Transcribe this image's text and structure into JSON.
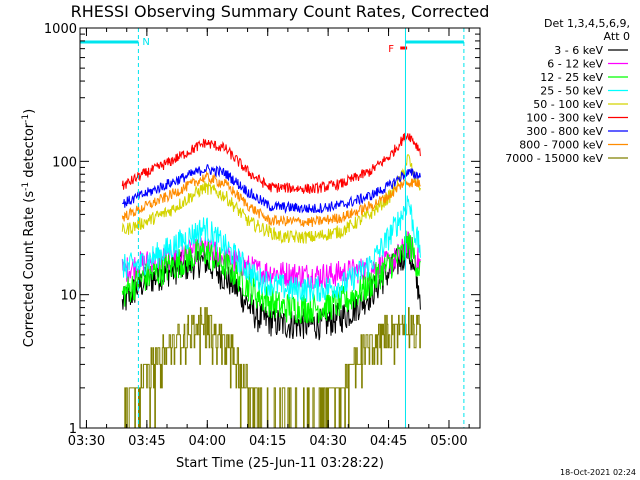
{
  "chart_data": {
    "type": "line",
    "title": "RHESSI Observing Summary Count Rates, Corrected",
    "xlabel": "Start Time (25-Jun-11 03:28:22)",
    "ylabel_main": "Corrected Count Rate (s",
    "ylabel_sup1": "-1",
    "ylabel_mid": " detector",
    "ylabel_sup2": "-1",
    "ylabel_end": ")",
    "x_unit": "minutes after 03:28:22",
    "xlim": [
      0,
      99.3
    ],
    "ylim": [
      1,
      1000
    ],
    "y_scale": "log",
    "x_ticks": [
      {
        "t": 1.6,
        "label": "03:30"
      },
      {
        "t": 16.6,
        "label": "03:45"
      },
      {
        "t": 31.6,
        "label": "04:00"
      },
      {
        "t": 46.6,
        "label": "04:15"
      },
      {
        "t": 61.6,
        "label": "04:30"
      },
      {
        "t": 76.6,
        "label": "04:45"
      },
      {
        "t": 91.6,
        "label": "05:00"
      }
    ],
    "y_ticks": [
      {
        "v": 1,
        "label": "1"
      },
      {
        "v": 10,
        "label": "10"
      },
      {
        "v": 100,
        "label": "100"
      },
      {
        "v": 1000,
        "label": "1000"
      }
    ],
    "legend": {
      "header1": "Det 1,3,4,5,6,9,",
      "header2": "Att 0",
      "placement": "right"
    },
    "flags": {
      "night_label": "N",
      "flare_label": "F",
      "night_color": "#00e5ee",
      "flare_color": "#ff0000",
      "night_bars": [
        [
          0,
          14.5
        ],
        [
          80.8,
          95.3
        ]
      ],
      "flare_bar": [
        79.5,
        81.2
      ]
    },
    "vlines_solid": [
      0,
      80.8
    ],
    "vlines_dashed": [
      14.5,
      95.3
    ],
    "data_range": [
      10.5,
      84.5
    ],
    "series": [
      {
        "name": "3 - 6 keV",
        "color": "#000000",
        "noise": 0.06,
        "points": [
          [
            10.5,
            8.5
          ],
          [
            15,
            12
          ],
          [
            22,
            15
          ],
          [
            31,
            18
          ],
          [
            38,
            12
          ],
          [
            44,
            6.8
          ],
          [
            50,
            6
          ],
          [
            60,
            6
          ],
          [
            66,
            7
          ],
          [
            72,
            10
          ],
          [
            76,
            14
          ],
          [
            80,
            19
          ],
          [
            81.5,
            22
          ],
          [
            83,
            14
          ],
          [
            84.5,
            10
          ]
        ]
      },
      {
        "name": "6 - 12 keV",
        "color": "#ff00ff",
        "noise": 0.05,
        "points": [
          [
            10.5,
            15
          ],
          [
            15,
            17
          ],
          [
            22,
            19
          ],
          [
            31,
            22
          ],
          [
            38,
            18
          ],
          [
            44,
            15
          ],
          [
            55,
            14
          ],
          [
            62,
            14
          ],
          [
            68,
            15
          ],
          [
            74,
            16
          ],
          [
            78,
            18
          ],
          [
            81.5,
            24
          ],
          [
            84.5,
            17
          ]
        ]
      },
      {
        "name": "12 - 25 keV",
        "color": "#00ff00",
        "noise": 0.06,
        "points": [
          [
            10.5,
            10
          ],
          [
            15,
            13
          ],
          [
            22,
            16
          ],
          [
            31,
            21
          ],
          [
            38,
            15
          ],
          [
            44,
            10
          ],
          [
            50,
            8
          ],
          [
            60,
            8
          ],
          [
            66,
            9
          ],
          [
            72,
            12
          ],
          [
            76,
            16
          ],
          [
            80,
            20
          ],
          [
            81.5,
            25
          ],
          [
            84.5,
            15
          ]
        ]
      },
      {
        "name": "25 - 50 keV",
        "color": "#00ffff",
        "noise": 0.05,
        "points": [
          [
            10.5,
            16
          ],
          [
            15,
            17
          ],
          [
            22,
            22
          ],
          [
            31,
            32
          ],
          [
            38,
            20
          ],
          [
            44,
            13
          ],
          [
            52,
            11
          ],
          [
            60,
            11
          ],
          [
            66,
            12
          ],
          [
            72,
            17
          ],
          [
            76,
            25
          ],
          [
            80,
            40
          ],
          [
            81.5,
            52
          ],
          [
            83,
            30
          ],
          [
            84.5,
            22
          ]
        ]
      },
      {
        "name": "50 - 100 keV",
        "color": "#d4d400",
        "noise": 0.025,
        "points": [
          [
            10.5,
            30
          ],
          [
            15,
            34
          ],
          [
            22,
            42
          ],
          [
            31,
            64
          ],
          [
            36,
            55
          ],
          [
            42,
            35
          ],
          [
            50,
            27
          ],
          [
            58,
            27
          ],
          [
            65,
            30
          ],
          [
            72,
            40
          ],
          [
            77,
            55
          ],
          [
            80,
            78
          ],
          [
            81.5,
            108
          ],
          [
            83,
            75
          ],
          [
            84.5,
            65
          ]
        ]
      },
      {
        "name": "100 - 300 keV",
        "color": "#ff0000",
        "noise": 0.02,
        "points": [
          [
            10.5,
            65
          ],
          [
            15,
            78
          ],
          [
            22,
            98
          ],
          [
            31,
            138
          ],
          [
            36,
            125
          ],
          [
            42,
            82
          ],
          [
            47,
            64
          ],
          [
            58,
            62
          ],
          [
            65,
            68
          ],
          [
            72,
            84
          ],
          [
            77,
            110
          ],
          [
            80,
            145
          ],
          [
            81.5,
            160
          ],
          [
            83,
            140
          ],
          [
            84.5,
            120
          ]
        ]
      },
      {
        "name": "300 - 800 keV",
        "color": "#0000ff",
        "noise": 0.02,
        "points": [
          [
            10.5,
            48
          ],
          [
            15,
            55
          ],
          [
            22,
            68
          ],
          [
            31,
            88
          ],
          [
            36,
            82
          ],
          [
            42,
            58
          ],
          [
            47,
            46
          ],
          [
            58,
            44
          ],
          [
            65,
            47
          ],
          [
            72,
            55
          ],
          [
            77,
            66
          ],
          [
            80,
            78
          ],
          [
            81.5,
            82
          ],
          [
            84.5,
            78
          ]
        ]
      },
      {
        "name": "800 - 7000 keV",
        "color": "#ff8c00",
        "noise": 0.02,
        "points": [
          [
            10.5,
            38
          ],
          [
            15,
            44
          ],
          [
            22,
            55
          ],
          [
            31,
            76
          ],
          [
            36,
            68
          ],
          [
            42,
            46
          ],
          [
            47,
            36
          ],
          [
            58,
            35
          ],
          [
            65,
            38
          ],
          [
            72,
            46
          ],
          [
            77,
            56
          ],
          [
            80,
            68
          ],
          [
            81.5,
            70
          ],
          [
            84.5,
            68
          ]
        ]
      },
      {
        "name": "7000 - 15000 keV",
        "color": "#808000",
        "noise": 0.0,
        "points": [
          [
            10.5,
            1.6
          ],
          [
            15,
            2.2
          ],
          [
            22,
            4
          ],
          [
            31,
            6.2
          ],
          [
            37,
            3.8
          ],
          [
            42,
            2
          ],
          [
            46,
            1.3
          ],
          [
            58,
            1.3
          ],
          [
            64,
            1.8
          ],
          [
            68,
            3
          ],
          [
            73,
            4.5
          ],
          [
            78,
            5.6
          ],
          [
            81.5,
            6
          ],
          [
            84.5,
            5
          ]
        ]
      }
    ]
  },
  "timestamp": "18-Oct-2021 02:24"
}
